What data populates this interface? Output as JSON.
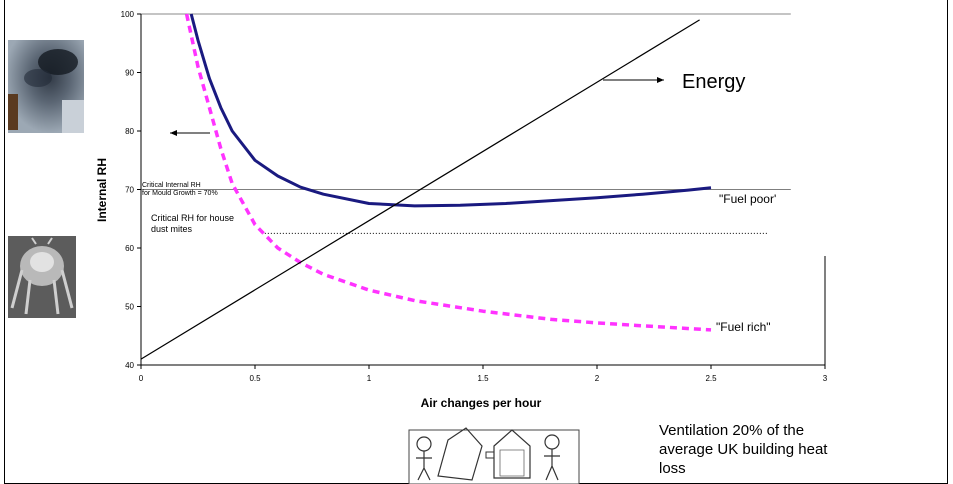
{
  "chart_data": {
    "type": "line",
    "xlabel": "Air changes per hour",
    "ylabel": "Internal RH",
    "xlim": [
      0,
      3
    ],
    "ylim": [
      40,
      100
    ],
    "x_ticks": [
      0,
      0.5,
      1,
      1.5,
      2,
      2.5,
      3
    ],
    "y_ticks": [
      40,
      50,
      60,
      70,
      80,
      90,
      100
    ],
    "x_tick_labels": [
      "0",
      "0.5",
      "1",
      "1.5",
      "2",
      "2.5",
      "3"
    ],
    "y_tick_labels": [
      "40",
      "50",
      "60",
      "70",
      "80",
      "90",
      "100"
    ],
    "series": [
      {
        "name": "\"Fuel poor'",
        "color": "#1a1a80",
        "style": "solid",
        "x": [
          0.22,
          0.25,
          0.3,
          0.35,
          0.4,
          0.5,
          0.6,
          0.7,
          0.8,
          1.0,
          1.2,
          1.4,
          1.6,
          1.8,
          2.0,
          2.2,
          2.4,
          2.5
        ],
        "y": [
          100,
          95.5,
          89,
          84,
          80,
          75,
          72.3,
          70.4,
          69.2,
          67.6,
          67.2,
          67.3,
          67.6,
          68.1,
          68.6,
          69.2,
          69.9,
          70.3
        ]
      },
      {
        "name": "\"Fuel rich\"",
        "color": "#ff33ff",
        "style": "dashed",
        "x": [
          0.2,
          0.25,
          0.3,
          0.35,
          0.4,
          0.5,
          0.6,
          0.7,
          0.8,
          1.0,
          1.2,
          1.5,
          1.8,
          2.0,
          2.2,
          2.5
        ],
        "y": [
          100,
          91,
          84,
          77,
          71,
          64,
          60,
          57.5,
          55.5,
          52.8,
          51,
          49.2,
          47.8,
          47.2,
          46.7,
          46
        ]
      },
      {
        "name": "Energy",
        "color": "#000000",
        "style": "solid",
        "x": [
          0,
          2.45
        ],
        "y": [
          41,
          99
        ]
      }
    ],
    "reference_lines": [
      {
        "label": "Critical Internal RH for Mould Growth = 70%",
        "y": 70,
        "x": [
          0,
          2.85
        ],
        "style": "solid-thin"
      },
      {
        "label": "Critical RH for house dust mites",
        "y": 62.5,
        "x": [
          0.53,
          2.75
        ],
        "style": "dotted"
      }
    ],
    "top_border": {
      "y": 100,
      "x": [
        0,
        2.85
      ]
    }
  },
  "annotations": {
    "mould_line1": "Critical Internal RH",
    "mould_line2": "for Mould Growth = 70%",
    "mites_line1": "Critical RH for house",
    "mites_line2": "dust mites",
    "energy": "Energy",
    "fuel_poor": "\"Fuel poor'",
    "fuel_rich": "\"Fuel rich\""
  },
  "note": {
    "line1": "Ventilation 20% of the",
    "line2": "average UK building heat",
    "line3": "loss"
  },
  "images": {
    "mould": "mould-photo",
    "mite": "dust-mite-micrograph",
    "cartoon": "house-ventilation-cartoon"
  }
}
